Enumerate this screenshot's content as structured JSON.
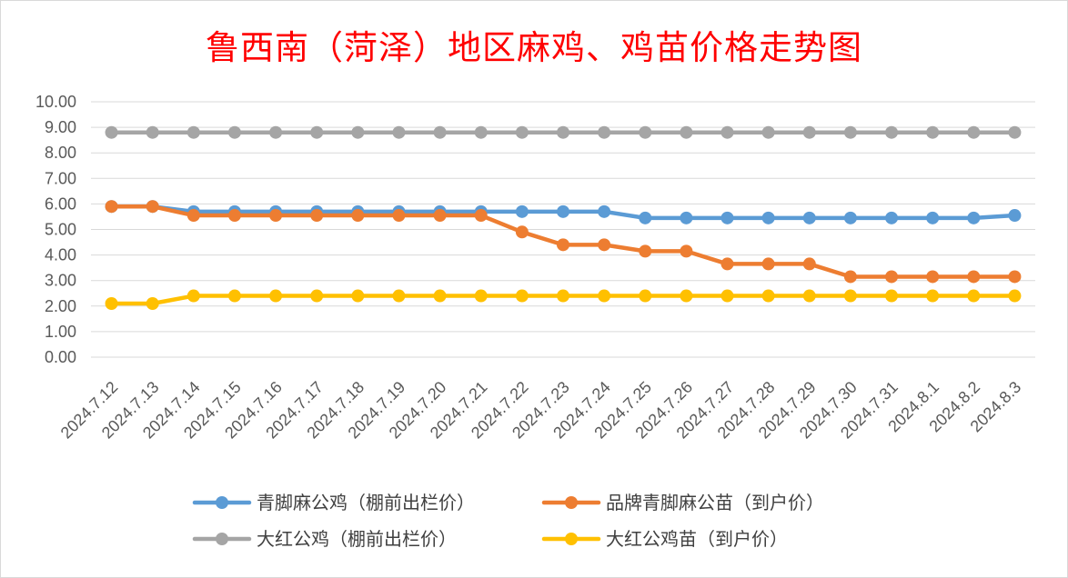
{
  "title": "鲁西南（菏泽）地区麻鸡、鸡苗价格走势图",
  "chart_data": {
    "type": "line",
    "title": "鲁西南（菏泽）地区麻鸡、鸡苗价格走势图",
    "xlabel": "",
    "ylabel": "",
    "ylim": [
      0,
      10
    ],
    "yticks": [
      "0.00",
      "1.00",
      "2.00",
      "3.00",
      "4.00",
      "5.00",
      "6.00",
      "7.00",
      "8.00",
      "9.00",
      "10.00"
    ],
    "grid": true,
    "legend_position": "bottom",
    "categories": [
      "2024.7.12",
      "2024.7.13",
      "2024.7.14",
      "2024.7.15",
      "2024.7.16",
      "2024.7.17",
      "2024.7.18",
      "2024.7.19",
      "2024.7.20",
      "2024.7.21",
      "2024.7.22",
      "2024.7.23",
      "2024.7.24",
      "2024.7.25",
      "2024.7.26",
      "2024.7.27",
      "2024.7.28",
      "2024.7.29",
      "2024.7.30",
      "2024.7.31",
      "2024.8.1",
      "2024.8.2",
      "2024.8.3"
    ],
    "series": [
      {
        "name": "青脚麻公鸡（棚前出栏价）",
        "color": "#5b9bd5",
        "values": [
          5.9,
          5.9,
          5.7,
          5.7,
          5.7,
          5.7,
          5.7,
          5.7,
          5.7,
          5.7,
          5.7,
          5.7,
          5.7,
          5.45,
          5.45,
          5.45,
          5.45,
          5.45,
          5.45,
          5.45,
          5.45,
          5.45,
          5.55
        ]
      },
      {
        "name": "品牌青脚麻公苗（到户价）",
        "color": "#ed7d31",
        "values": [
          5.9,
          5.9,
          5.55,
          5.55,
          5.55,
          5.55,
          5.55,
          5.55,
          5.55,
          5.55,
          4.9,
          4.4,
          4.4,
          4.15,
          4.15,
          3.65,
          3.65,
          3.65,
          3.15,
          3.15,
          3.15,
          3.15,
          3.15
        ]
      },
      {
        "name": "大红公鸡（棚前出栏价）",
        "color": "#a5a5a5",
        "values": [
          8.8,
          8.8,
          8.8,
          8.8,
          8.8,
          8.8,
          8.8,
          8.8,
          8.8,
          8.8,
          8.8,
          8.8,
          8.8,
          8.8,
          8.8,
          8.8,
          8.8,
          8.8,
          8.8,
          8.8,
          8.8,
          8.8,
          8.8
        ]
      },
      {
        "name": "大红公鸡苗（到户价）",
        "color": "#ffc000",
        "values": [
          2.1,
          2.1,
          2.4,
          2.4,
          2.4,
          2.4,
          2.4,
          2.4,
          2.4,
          2.4,
          2.4,
          2.4,
          2.4,
          2.4,
          2.4,
          2.4,
          2.4,
          2.4,
          2.4,
          2.4,
          2.4,
          2.4,
          2.4
        ]
      }
    ]
  }
}
